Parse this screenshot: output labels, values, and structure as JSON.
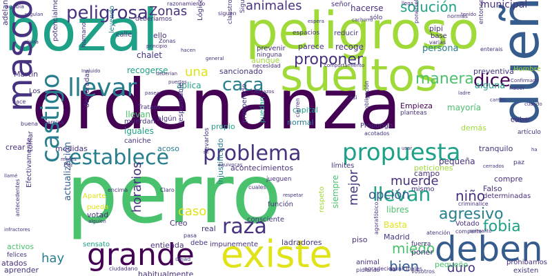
{
  "palette": {
    "dark-purple": "#440154",
    "indigo": "#46327e",
    "blue": "#365c8d",
    "teal-blue": "#277f8e",
    "teal": "#1fa187",
    "green": "#4ac16d",
    "lime": "#a0da39",
    "yellow": "#e0e317"
  },
  "words": [
    {
      "text": "perro",
      "color": "#4ac16d"
    },
    {
      "text": "ordenanza",
      "color": "#440154"
    },
    {
      "text": "bozal",
      "color": "#1fa187"
    },
    {
      "text": "peligroso",
      "color": "#a0da39"
    },
    {
      "text": "dueño",
      "color": "#365c8d"
    },
    {
      "text": "sueltos",
      "color": "#a0da39"
    },
    {
      "text": "mascota",
      "color": "#46327e"
    },
    {
      "text": "deben",
      "color": "#365c8d"
    },
    {
      "text": "existe",
      "color": "#e0e317"
    },
    {
      "text": "grande",
      "color": "#440154"
    },
    {
      "text": "propuesta",
      "color": "#1fa187"
    },
    {
      "text": "problema",
      "color": "#46327e"
    },
    {
      "text": "llevar",
      "color": "#277f8e"
    },
    {
      "text": "castigo",
      "color": "#277f8e"
    },
    {
      "text": "establece",
      "color": "#277f8e"
    },
    {
      "text": "raza",
      "color": "#46327e"
    },
    {
      "text": "peligrosa",
      "color": "#46327e"
    },
    {
      "text": "caca",
      "color": "#277f8e"
    },
    {
      "text": "dice",
      "color": "#440154"
    },
    {
      "text": "manera",
      "color": "#4ac16d"
    },
    {
      "text": "proponer",
      "color": "#46327e"
    },
    {
      "text": "solución",
      "color": "#1fa187"
    },
    {
      "text": "animales",
      "color": "#46327e"
    },
    {
      "text": "Zonas",
      "color": "#46327e"
    },
    {
      "text": "llevan",
      "color": "#1fa187"
    },
    {
      "text": "muerde",
      "color": "#46327e"
    },
    {
      "text": "agresivo",
      "color": "#277f8e"
    },
    {
      "text": "opción",
      "color": "#365c8d"
    },
    {
      "text": "miedo",
      "color": "#4ac16d"
    },
    {
      "text": "duro",
      "color": "#46327e"
    },
    {
      "text": "bien",
      "color": "#365c8d"
    },
    {
      "text": "hay",
      "color": "#277f8e"
    },
    {
      "text": "fobia",
      "color": "#1fa187"
    },
    {
      "text": "niño",
      "color": "#46327e"
    },
    {
      "text": "mejor",
      "color": "#46327e"
    },
    {
      "text": "caso",
      "color": "#e0e317"
    },
    {
      "text": "horarios",
      "color": "#46327e"
    },
    {
      "text": "una",
      "color": "#e0e317"
    },
    {
      "text": "municipal",
      "color": "#46327e"
    },
    {
      "text": "hacerse",
      "color": "#46327e"
    },
    {
      "text": "persona",
      "color": "#277f8e"
    },
    {
      "text": "alguna",
      "color": "#1fa187"
    },
    {
      "text": "preventiva",
      "color": "#46327e"
    },
    {
      "text": "actualización",
      "color": "#365c8d"
    },
    {
      "text": "siempre",
      "color": "#4ac16d"
    },
    {
      "text": "injustificado",
      "color": "#277f8e"
    },
    {
      "text": "aplica",
      "color": "#1fa187"
    },
    {
      "text": "sancionado",
      "color": "#46327e"
    },
    {
      "text": "recogerse",
      "color": "#1fa187"
    },
    {
      "text": "chalet",
      "color": "#46327e"
    },
    {
      "text": "capital",
      "color": "#1fa187"
    },
    {
      "text": "mayoría",
      "color": "#4ac16d"
    },
    {
      "text": "normal",
      "color": "#277f8e"
    },
    {
      "text": "Empieza",
      "color": "#440154"
    },
    {
      "text": "iguales",
      "color": "#1fa187"
    },
    {
      "text": "llevan",
      "color": "#4ac16d"
    },
    {
      "text": "propio",
      "color": "#1fa187"
    },
    {
      "text": "acoso",
      "color": "#277f8e"
    },
    {
      "text": "medidas",
      "color": "#46327e"
    },
    {
      "text": "caniche",
      "color": "#46327e"
    },
    {
      "text": "declaradas",
      "color": "#46327e"
    },
    {
      "text": "Martín",
      "color": "#46327e"
    },
    {
      "text": "adelantemos",
      "color": "#46327e"
    },
    {
      "text": "acontecimientos",
      "color": "#46327e"
    },
    {
      "text": "libres",
      "color": "#4ac16d"
    },
    {
      "text": "Basta",
      "color": "#e0e317"
    },
    {
      "text": "Madrid",
      "color": "#46327e"
    },
    {
      "text": "ladradores",
      "color": "#46327e"
    },
    {
      "text": "impunemente",
      "color": "#46327e"
    },
    {
      "text": "habitualmente",
      "color": "#46327e"
    },
    {
      "text": "sensato",
      "color": "#1fa187"
    },
    {
      "text": "entienda",
      "color": "#46327e"
    },
    {
      "text": "crear",
      "color": "#46327e"
    },
    {
      "text": "activos",
      "color": "#4ac16d"
    },
    {
      "text": "atados",
      "color": "#46327e"
    },
    {
      "text": "aprender",
      "color": "#46327e"
    },
    {
      "text": "pequeña",
      "color": "#46327e"
    },
    {
      "text": "pequeño",
      "color": "#4ac16d"
    },
    {
      "text": "existen",
      "color": "#46327e"
    },
    {
      "text": "prohibamos",
      "color": "#46327e"
    },
    {
      "text": "cabe",
      "color": "#46327e"
    },
    {
      "text": "demás",
      "color": "#a0da39"
    },
    {
      "text": "límites",
      "color": "#46327e"
    },
    {
      "text": "peticiones",
      "color": "#a0da39"
    },
    {
      "text": "recoge",
      "color": "#46327e"
    },
    {
      "text": "parece",
      "color": "#46327e"
    },
    {
      "text": "prevenir",
      "color": "#46327e"
    },
    {
      "text": "ello",
      "color": "#46327e"
    },
    {
      "text": "leyendo",
      "color": "#277f8e"
    },
    {
      "text": "calle",
      "color": "#46327e"
    },
    {
      "text": "pipi",
      "color": "#46327e"
    },
    {
      "text": "base",
      "color": "#46327e"
    },
    {
      "text": "Hombre",
      "color": "#a0da39"
    },
    {
      "text": "aunque",
      "color": "#a0da39"
    },
    {
      "text": "espacios",
      "color": "#46327e"
    },
    {
      "text": "reducir",
      "color": "#46327e"
    },
    {
      "text": "señor",
      "color": "#46327e"
    },
    {
      "text": "entonces",
      "color": "#46327e"
    },
    {
      "text": "Trataos",
      "color": "#46327e"
    },
    {
      "text": "muerdan",
      "color": "#46327e"
    },
    {
      "text": "algún",
      "color": "#46327e"
    },
    {
      "text": "responsable",
      "color": "#46327e"
    },
    {
      "text": "prosperado",
      "color": "#46327e"
    },
    {
      "text": "puedan",
      "color": "#1fa187"
    },
    {
      "text": "Propongo",
      "color": "#46327e"
    },
    {
      "text": "campo",
      "color": "#46327e"
    },
    {
      "text": "tranquilo",
      "color": "#46327e"
    },
    {
      "text": "compre",
      "color": "#46327e"
    },
    {
      "text": "Falso",
      "color": "#46327e"
    },
    {
      "text": "determinadas",
      "color": "#46327e"
    },
    {
      "text": "Votado",
      "color": "#46327e"
    },
    {
      "text": "mismo",
      "color": "#46327e"
    },
    {
      "text": "función",
      "color": "#46327e"
    },
    {
      "text": "respeto",
      "color": "#a0da39"
    },
    {
      "text": "consciente",
      "color": "#46327e"
    },
    {
      "text": "real",
      "color": "#46327e"
    },
    {
      "text": "Creo",
      "color": "#46327e"
    },
    {
      "text": "votad",
      "color": "#46327e"
    },
    {
      "text": "pueda",
      "color": "#e0e317"
    },
    {
      "text": "Aparte",
      "color": "#e0e317"
    },
    {
      "text": "debe",
      "color": "#46327e"
    },
    {
      "text": "piso",
      "color": "#46327e"
    },
    {
      "text": "poner",
      "color": "#46327e"
    },
    {
      "text": "fuerza",
      "color": "#46327e"
    },
    {
      "text": "animal",
      "color": "#46327e"
    },
    {
      "text": "felices",
      "color": "#46327e"
    },
    {
      "text": "tomar",
      "color": "#46327e"
    },
    {
      "text": "Efectivamente",
      "color": "#46327e"
    },
    {
      "text": "Los",
      "color": "#46327e"
    },
    {
      "text": "humano",
      "color": "#46327e"
    },
    {
      "text": "potencialmente",
      "color": "#46327e"
    },
    {
      "text": "Lógicamente",
      "color": "#46327e"
    },
    {
      "text": "claustrofóbico",
      "color": "#46327e"
    },
    {
      "text": "Siguiendo",
      "color": "#46327e"
    },
    {
      "text": "ninguna",
      "color": "#46327e"
    },
    {
      "text": "necesidad",
      "color": "#46327e"
    },
    {
      "text": "deberíamos",
      "color": "#46327e"
    },
    {
      "text": "razonamiento",
      "color": "#46327e"
    },
    {
      "text": "agobia",
      "color": "#46327e"
    },
    {
      "text": "siguen",
      "color": "#46327e"
    },
    {
      "text": "sólo",
      "color": "#46327e"
    },
    {
      "text": "jueguen",
      "color": "#46327e"
    },
    {
      "text": "llevarlos",
      "color": "#46327e"
    },
    {
      "text": "pasa",
      "color": "#46327e"
    },
    {
      "text": "Por",
      "color": "#46327e"
    },
    {
      "text": "hace",
      "color": "#46327e"
    },
    {
      "text": "buena",
      "color": "#46327e"
    },
    {
      "text": "camisa",
      "color": "#46327e"
    },
    {
      "text": "cierren",
      "color": "#46327e"
    },
    {
      "text": "obligación",
      "color": "#46327e"
    },
    {
      "text": "acotados",
      "color": "#46327e"
    },
    {
      "text": "casi",
      "color": "#46327e"
    },
    {
      "text": "normas",
      "color": "#46327e"
    },
    {
      "text": "ponérselo",
      "color": "#46327e"
    },
    {
      "text": "enterais",
      "color": "#46327e"
    },
    {
      "text": "varias",
      "color": "#46327e"
    },
    {
      "text": "hacer",
      "color": "#46327e"
    },
    {
      "text": "artículo",
      "color": "#46327e"
    },
    {
      "text": "paz",
      "color": "#46327e"
    },
    {
      "text": "planteas",
      "color": "#46327e"
    },
    {
      "text": "Zonas",
      "color": "#46327e"
    },
    {
      "text": "cuales",
      "color": "#46327e"
    },
    {
      "text": "Claro",
      "color": "#46327e"
    },
    {
      "text": "encima",
      "color": "#46327e"
    },
    {
      "text": "antecedentes",
      "color": "#46327e"
    },
    {
      "text": "dejad",
      "color": "#46327e"
    },
    {
      "text": "ciudadano",
      "color": "#46327e"
    },
    {
      "text": "agradecida",
      "color": "#46327e"
    },
    {
      "text": "pidiendo",
      "color": "#46327e"
    },
    {
      "text": "agorafóbico",
      "color": "#46327e"
    },
    {
      "text": "vosotros",
      "color": "#46327e"
    },
    {
      "text": "municipales",
      "color": "#46327e"
    },
    {
      "text": "criminalice",
      "color": "#46327e"
    },
    {
      "text": "comparte",
      "color": "#46327e"
    },
    {
      "text": "atención",
      "color": "#46327e"
    },
    {
      "text": "principio",
      "color": "#46327e"
    },
    {
      "text": "regulan",
      "color": "#46327e"
    },
    {
      "text": "rígida",
      "color": "#46327e"
    },
    {
      "text": "comportamiento",
      "color": "#46327e"
    },
    {
      "text": "Latigazos",
      "color": "#46327e"
    },
    {
      "text": "Confirmado",
      "color": "#46327e"
    },
    {
      "text": "reciente",
      "color": "#46327e"
    },
    {
      "text": "tenido",
      "color": "#46327e"
    },
    {
      "text": "Incluido",
      "color": "#46327e"
    },
    {
      "text": "deberían",
      "color": "#46327e"
    },
    {
      "text": "pasear",
      "color": "#46327e"
    },
    {
      "text": "cerrados",
      "color": "#46327e"
    },
    {
      "text": "alguien",
      "color": "#46327e"
    },
    {
      "text": "respetar",
      "color": "#46327e"
    },
    {
      "text": "meses",
      "color": "#46327e"
    },
    {
      "text": "llamé",
      "color": "#46327e"
    },
    {
      "text": "infractores",
      "color": "#46327e"
    },
    {
      "text": "puertas",
      "color": "#46327e"
    },
    {
      "text": "hacen",
      "color": "#46327e"
    },
    {
      "text": "general",
      "color": "#46327e"
    },
    {
      "text": "equivocas",
      "color": "#46327e"
    },
    {
      "text": "llega",
      "color": "#46327e"
    },
    {
      "text": "cachorro",
      "color": "#46327e"
    },
    {
      "text": "espera",
      "color": "#46327e"
    },
    {
      "text": "animalito",
      "color": "#46327e"
    },
    {
      "text": "usar",
      "color": "#46327e"
    },
    {
      "text": "ha",
      "color": "#46327e"
    },
    {
      "text": "carrito",
      "color": "#46327e"
    },
    {
      "text": "cuando",
      "color": "#46327e"
    },
    {
      "text": "ladre",
      "color": "#46327e"
    }
  ]
}
